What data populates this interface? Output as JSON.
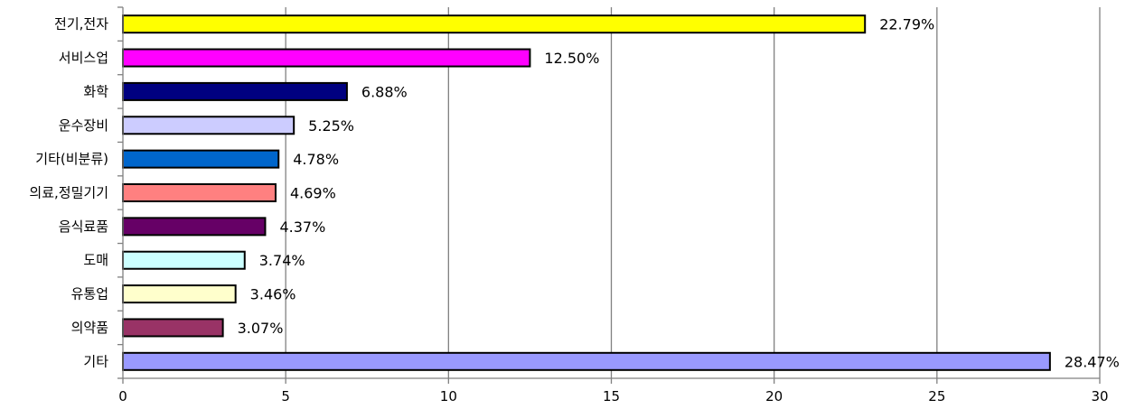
{
  "chart_data": {
    "type": "bar",
    "orientation": "horizontal",
    "categories": [
      "전기,전자",
      "서비스업",
      "화학",
      "운수장비",
      "기타(비분류)",
      "의료,정밀기기",
      "음식료품",
      "도매",
      "유통업",
      "의약품",
      "기타"
    ],
    "values": [
      22.79,
      12.5,
      6.88,
      5.25,
      4.78,
      4.69,
      4.37,
      3.74,
      3.46,
      3.07,
      28.47
    ],
    "value_labels": [
      "22.79%",
      "12.50%",
      "6.88%",
      "5.25%",
      "4.78%",
      "4.69%",
      "4.37%",
      "3.74%",
      "3.46%",
      "3.07%",
      "28.47%"
    ],
    "colors": [
      "#ffff00",
      "#ff00ff",
      "#000080",
      "#ccccff",
      "#0066cc",
      "#ff8080",
      "#660066",
      "#ccffff",
      "#ffffcc",
      "#993366",
      "#9999ff"
    ],
    "xlim": [
      0,
      30
    ],
    "xticks": [
      "0",
      "5",
      "10",
      "15",
      "20",
      "25",
      "30"
    ],
    "grid": true,
    "legend": "none"
  }
}
